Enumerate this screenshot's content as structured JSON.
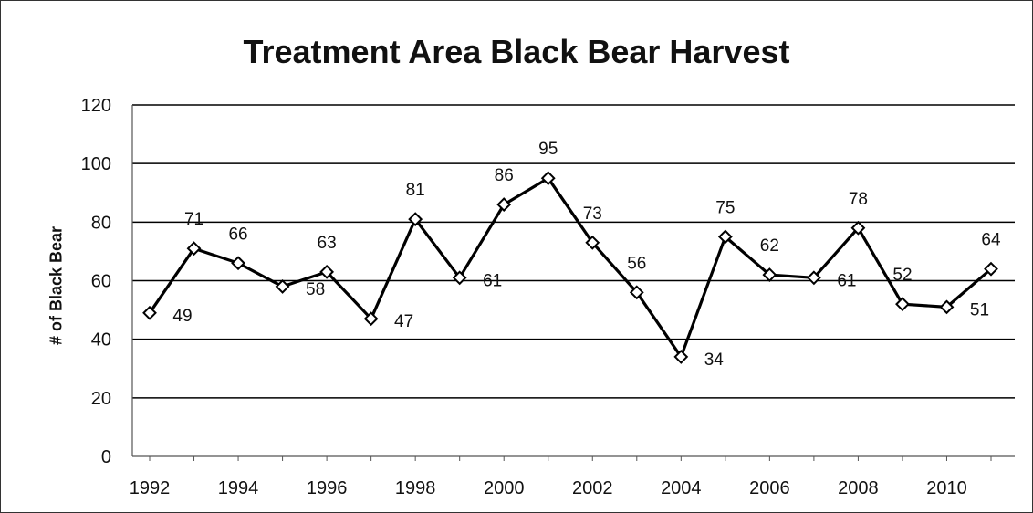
{
  "chart_data": {
    "type": "line",
    "title": "Treatment Area Black Bear Harvest",
    "xlabel": "",
    "ylabel": "# of Black Bear",
    "x": [
      1992,
      1993,
      1994,
      1995,
      1996,
      1997,
      1998,
      1999,
      2000,
      2001,
      2002,
      2003,
      2004,
      2005,
      2006,
      2007,
      2008,
      2009,
      2010,
      2011
    ],
    "series": [
      {
        "values": [
          49,
          71,
          66,
          58,
          63,
          47,
          81,
          61,
          86,
          95,
          73,
          56,
          34,
          75,
          62,
          61,
          78,
          52,
          51,
          64
        ]
      }
    ],
    "x_tick_labels": [
      "1992",
      "1994",
      "1996",
      "1998",
      "2000",
      "2002",
      "2004",
      "2006",
      "2008",
      "2010"
    ],
    "y_tick_labels": [
      "0",
      "20",
      "40",
      "60",
      "80",
      "100",
      "120"
    ],
    "ylim": [
      0,
      120
    ],
    "grid": "horizontal",
    "legend": "none",
    "line_color": "#000000",
    "marker": "diamond"
  }
}
